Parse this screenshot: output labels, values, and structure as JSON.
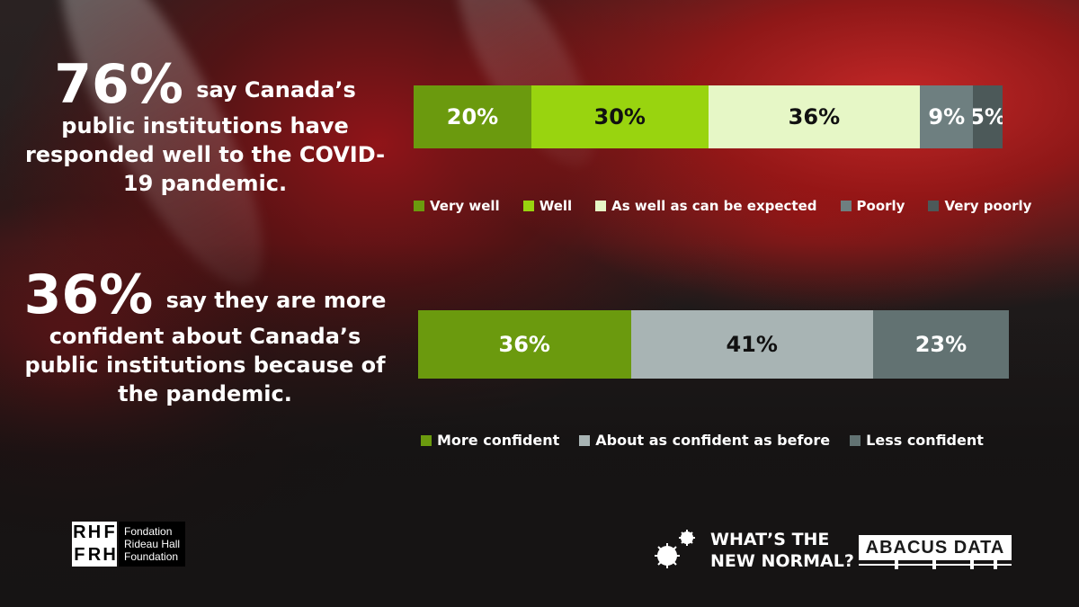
{
  "left_panel": {
    "stat1": {
      "value": "76%",
      "text_lead": "say Canada’s",
      "text_rest": "public institutions have responded well to the COVID-19 pandemic."
    },
    "stat2": {
      "value": "36%",
      "text_lead": "say they are",
      "text_rest": "more confident about Canada’s public institutions because of the pandemic."
    }
  },
  "chart_data": [
    {
      "type": "bar",
      "orientation": "horizontal-stacked",
      "categories": [
        "Very well",
        "Well",
        "As well as can be expected",
        "Poorly",
        "Very poorly"
      ],
      "values": [
        20,
        30,
        36,
        9,
        5
      ],
      "labels": [
        "20%",
        "30%",
        "36%",
        "9%",
        "5%"
      ],
      "colors": [
        "#6b9a0e",
        "#99d40f",
        "#e6f7c6",
        "#6e7f80",
        "#4c5959"
      ],
      "label_colors": [
        "#ffffff",
        "#111111",
        "#111111",
        "#ffffff",
        "#ffffff"
      ],
      "legend_position": "bottom",
      "grid": false
    },
    {
      "type": "bar",
      "orientation": "horizontal-stacked",
      "categories": [
        "More confident",
        "About as confident as before",
        "Less confident"
      ],
      "values": [
        36,
        41,
        23
      ],
      "labels": [
        "36%",
        "41%",
        "23%"
      ],
      "colors": [
        "#6b9a0e",
        "#a8b4b4",
        "#627272"
      ],
      "label_colors": [
        "#ffffff",
        "#111111",
        "#ffffff"
      ],
      "legend_position": "bottom",
      "grid": false
    }
  ],
  "footer": {
    "rhf_mark": [
      "R",
      "H",
      "F",
      "F",
      "R",
      "H"
    ],
    "rhf_text": [
      "Fondation",
      "Rideau Hall",
      "Foundation"
    ],
    "new_normal": [
      "WHAT’S THE",
      "NEW NORMAL?"
    ],
    "new_normal_icon": "virus-icon",
    "abacus": "ABACUS DATA"
  }
}
